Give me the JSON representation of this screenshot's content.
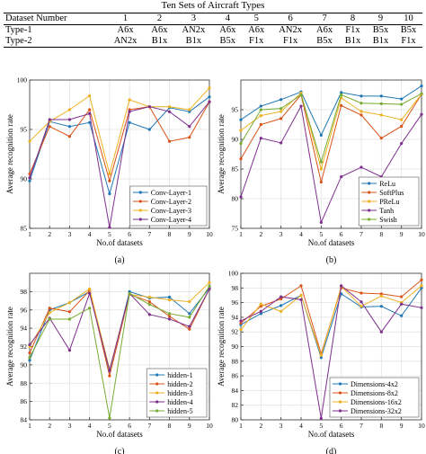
{
  "table": {
    "title": "Ten Sets of Aircraft Types",
    "header_label": "Dataset Number",
    "columns": [
      "1",
      "2",
      "3",
      "4",
      "5",
      "6",
      "7",
      "8",
      "9",
      "10"
    ],
    "rows": [
      {
        "label": "Type-1",
        "cells": [
          "A6x",
          "A6x",
          "AN2x",
          "A6x",
          "A6x",
          "AN2x",
          "A6x",
          "F1x",
          "B5x",
          "B5x"
        ]
      },
      {
        "label": "Type-2",
        "cells": [
          "AN2x",
          "B1x",
          "B1x",
          "B5x",
          "F1x",
          "F1x",
          "B5x",
          "B1x",
          "B1x",
          "F1x"
        ]
      }
    ]
  },
  "chart_data": [
    {
      "type": "line",
      "label": "(a)",
      "xlabel": "No.of datasets",
      "ylabel": "Average recognition rate",
      "x": [
        1,
        2,
        3,
        4,
        5,
        6,
        7,
        8,
        9,
        10
      ],
      "xlim": [
        1,
        10
      ],
      "ylim": [
        85,
        100
      ],
      "yticks": [
        85,
        90,
        95,
        100
      ],
      "legend": "bottom-right",
      "series": [
        {
          "name": "Conv-Layer-1",
          "color": "#1f77b4",
          "values": [
            89.8,
            95.8,
            95.3,
            95.7,
            88.5,
            95.7,
            95.0,
            97.2,
            96.8,
            98.3
          ]
        },
        {
          "name": "Conv-Layer-2",
          "color": "#d95319",
          "values": [
            90.5,
            95.3,
            94.3,
            97.0,
            89.8,
            97.0,
            97.3,
            93.8,
            94.2,
            97.8
          ]
        },
        {
          "name": "Conv-Layer-3",
          "color": "#edb120",
          "values": [
            93.8,
            95.8,
            97.0,
            98.4,
            90.5,
            98.0,
            97.3,
            97.3,
            97.0,
            99.2
          ]
        },
        {
          "name": "Conv-Layer-4",
          "color": "#7e2f8e",
          "values": [
            90.1,
            96.0,
            96.0,
            96.6,
            85.1,
            96.8,
            97.3,
            96.8,
            95.3,
            97.8
          ]
        }
      ]
    },
    {
      "type": "line",
      "label": "(b)",
      "xlabel": "No.of datasets",
      "ylabel": "Average recognition rate",
      "x": [
        1,
        2,
        3,
        4,
        5,
        6,
        7,
        8,
        9,
        10
      ],
      "xlim": [
        1,
        10
      ],
      "ylim": [
        75,
        100
      ],
      "yticks": [
        75,
        80,
        85,
        90,
        95
      ],
      "legend": "bottom-right",
      "series": [
        {
          "name": "ReLu",
          "color": "#1f77b4",
          "values": [
            93.3,
            95.6,
            96.7,
            98.0,
            90.7,
            97.9,
            97.3,
            97.3,
            96.8,
            99.0
          ]
        },
        {
          "name": "SoftPlus",
          "color": "#d95319",
          "values": [
            86.7,
            92.5,
            93.5,
            97.5,
            82.8,
            95.7,
            94.1,
            90.2,
            92.2,
            97.6
          ]
        },
        {
          "name": "PReLu",
          "color": "#edb120",
          "values": [
            91.5,
            94.0,
            94.7,
            97.8,
            85.0,
            97.0,
            94.7,
            94.1,
            93.3,
            97.6
          ]
        },
        {
          "name": "Tanh",
          "color": "#7e2f8e",
          "values": [
            80.3,
            90.2,
            89.4,
            95.6,
            76.0,
            83.7,
            85.3,
            83.7,
            89.3,
            94.2
          ]
        },
        {
          "name": "Swish",
          "color": "#77ac30",
          "values": [
            89.3,
            95.0,
            95.2,
            97.5,
            86.2,
            97.5,
            96.1,
            96.0,
            95.9,
            97.7
          ]
        }
      ]
    },
    {
      "type": "line",
      "label": "(c)",
      "xlabel": "No.of datasets",
      "ylabel": "Average recognition rate",
      "x": [
        1,
        2,
        3,
        4,
        5,
        6,
        7,
        8,
        9,
        10
      ],
      "xlim": [
        1,
        10
      ],
      "ylim": [
        84,
        100
      ],
      "yticks": [
        84,
        86,
        88,
        90,
        92,
        94,
        96,
        98
      ],
      "legend": "bottom-right",
      "series": [
        {
          "name": "hidden-1",
          "color": "#1f77b4",
          "values": [
            90.5,
            96.0,
            96.8,
            98.0,
            89.3,
            98.0,
            97.3,
            97.4,
            95.6,
            98.4
          ]
        },
        {
          "name": "hidden-2",
          "color": "#d95319",
          "values": [
            91.3,
            96.2,
            95.8,
            98.1,
            88.8,
            97.7,
            96.9,
            95.3,
            93.9,
            98.3
          ]
        },
        {
          "name": "hidden-3",
          "color": "#edb120",
          "values": [
            92.0,
            95.7,
            96.8,
            98.3,
            89.5,
            97.7,
            97.4,
            97.1,
            96.9,
            99.0
          ]
        },
        {
          "name": "hidden-4",
          "color": "#7e2f8e",
          "values": [
            92.2,
            95.1,
            91.6,
            97.8,
            89.4,
            97.8,
            95.5,
            95.0,
            94.2,
            98.3
          ]
        },
        {
          "name": "hidden-5",
          "color": "#77ac30",
          "values": [
            90.8,
            95.0,
            95.0,
            96.2,
            84.2,
            97.8,
            96.6,
            95.6,
            95.2,
            98.6
          ]
        }
      ]
    },
    {
      "type": "line",
      "label": "(d)",
      "xlabel": "No.of datasets",
      "ylabel": "Average recognition rate",
      "x": [
        1,
        2,
        3,
        4,
        5,
        6,
        7,
        8,
        9,
        10
      ],
      "xlim": [
        1,
        10
      ],
      "ylim": [
        80,
        100
      ],
      "yticks": [
        80,
        82,
        84,
        86,
        88,
        90,
        92,
        94,
        96,
        98,
        100
      ],
      "legend": "bottom-right",
      "series": [
        {
          "name": "Dimensions-4x2",
          "color": "#1f77b4",
          "values": [
            93.0,
            94.5,
            95.6,
            97.0,
            88.5,
            97.2,
            95.4,
            95.5,
            94.2,
            98.0
          ]
        },
        {
          "name": "Dimensions-8x2",
          "color": "#d95319",
          "values": [
            93.2,
            95.5,
            96.5,
            98.3,
            89.0,
            98.0,
            97.3,
            97.2,
            96.8,
            99.1
          ]
        },
        {
          "name": "Dimensions-16x2",
          "color": "#edb120",
          "values": [
            92.3,
            95.8,
            94.8,
            97.0,
            88.8,
            98.2,
            95.5,
            96.9,
            96.0,
            98.3
          ]
        },
        {
          "name": "Dimensions-32x2",
          "color": "#7e2f8e",
          "values": [
            93.5,
            94.8,
            96.8,
            96.4,
            80.2,
            98.3,
            96.1,
            92.0,
            95.8,
            95.3
          ]
        }
      ]
    }
  ]
}
